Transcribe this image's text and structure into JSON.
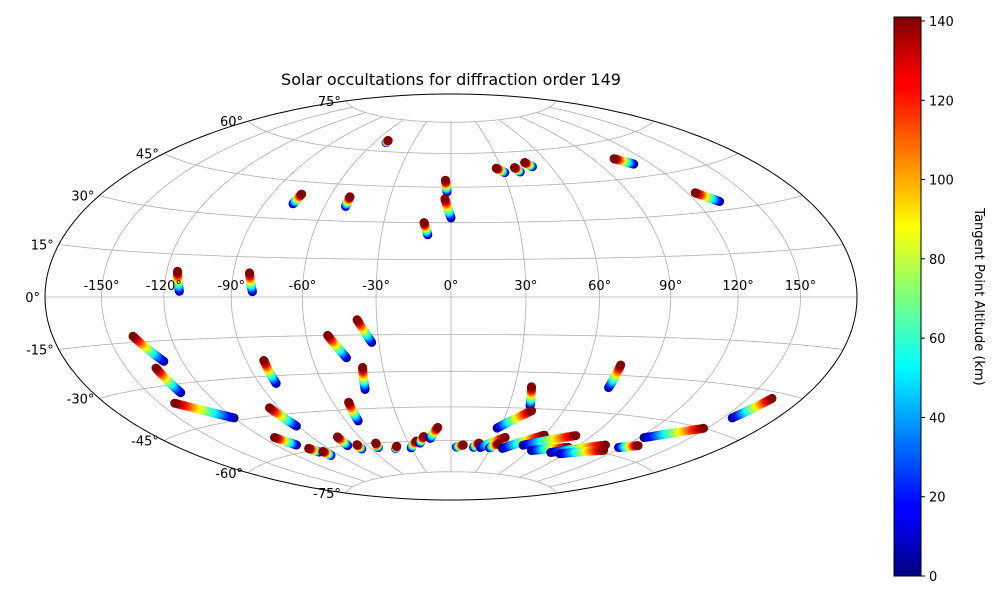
{
  "chart_data": {
    "type": "scatter",
    "projection": "hammer",
    "title": "Solar occultations for diffraction order 149",
    "xlabel": "",
    "ylabel": "",
    "grid": true,
    "lon_ticks": [
      -150,
      -120,
      -90,
      -60,
      -30,
      0,
      30,
      60,
      90,
      120,
      150
    ],
    "lon_tick_labels": [
      "-150°",
      "-120°",
      "-90°",
      "-60°",
      "-30°",
      "0°",
      "30°",
      "60°",
      "90°",
      "120°",
      "150°"
    ],
    "lat_ticks": [
      -75,
      -60,
      -45,
      -30,
      -15,
      0,
      15,
      30,
      45,
      60,
      75
    ],
    "lat_tick_labels": [
      "-75°",
      "-60°",
      "-45°",
      "-30°",
      "-15°",
      "0°",
      "15°",
      "30°",
      "45°",
      "60°",
      "75°"
    ],
    "colorbar": {
      "label": "Tangent Point Altitude (km)",
      "colormap": "jet",
      "min": 0,
      "max": 141,
      "ticks": [
        0,
        20,
        40,
        60,
        80,
        100,
        120,
        140
      ],
      "tick_labels": [
        "0",
        "20",
        "40",
        "60",
        "80",
        "100",
        "120",
        "140"
      ]
    },
    "units": {
      "lon": "degrees",
      "lat": "degrees",
      "altitude": "km"
    },
    "tracks": [
      {
        "top": [
          -51,
          65
        ],
        "bottom": [
          -51,
          64
        ]
      },
      {
        "top": [
          -75,
          40
        ],
        "bottom": [
          -76,
          36
        ]
      },
      {
        "top": [
          -50,
          40
        ],
        "bottom": [
          -50,
          36
        ]
      },
      {
        "top": [
          -3,
          48
        ],
        "bottom": [
          -2,
          43
        ]
      },
      {
        "top": [
          -3,
          40
        ],
        "bottom": [
          0,
          32
        ]
      },
      {
        "top": [
          -12,
          30
        ],
        "bottom": [
          -10,
          25
        ]
      },
      {
        "top": [
          27,
          53
        ],
        "bottom": [
          31,
          51
        ]
      },
      {
        "top": [
          38,
          53
        ],
        "bottom": [
          40,
          51
        ]
      },
      {
        "top": [
          46,
          55
        ],
        "bottom": [
          49,
          53
        ]
      },
      {
        "top": [
          103,
          53
        ],
        "bottom": [
          110,
          50
        ]
      },
      {
        "top": [
          124,
          37
        ],
        "bottom": [
          132,
          33
        ]
      },
      {
        "top": [
          -115,
          9
        ],
        "bottom": [
          -113,
          2
        ]
      },
      {
        "top": [
          -83,
          9
        ],
        "bottom": [
          -81,
          2
        ]
      },
      {
        "top": [
          -138,
          -13
        ],
        "bottom": [
          -129,
          -22
        ]
      },
      {
        "top": [
          -135,
          -24
        ],
        "bottom": [
          -133,
          -33
        ]
      },
      {
        "top": [
          -82,
          -24
        ],
        "bottom": [
          -82,
          -33
        ]
      },
      {
        "top": [
          -51,
          -15
        ],
        "bottom": [
          -45,
          -24
        ]
      },
      {
        "top": [
          -38,
          -9
        ],
        "bottom": [
          -33,
          -18
        ]
      },
      {
        "top": [
          -39,
          -28
        ],
        "bottom": [
          -41,
          -37
        ]
      },
      {
        "top": [
          -142,
          -36
        ],
        "bottom": [
          -120,
          -44
        ]
      },
      {
        "top": [
          -95,
          -42
        ],
        "bottom": [
          -91,
          -50
        ]
      },
      {
        "top": [
          -52,
          -42
        ],
        "bottom": [
          -53,
          -50
        ]
      },
      {
        "top": [
          38,
          -36
        ],
        "bottom": [
          41,
          -44
        ]
      },
      {
        "top": [
          43,
          -46
        ],
        "bottom": [
          28,
          -54
        ]
      },
      {
        "top": [
          75,
          -26
        ],
        "bottom": [
          75,
          -35
        ]
      },
      {
        "top": [
          163,
          -32
        ],
        "bottom": [
          155,
          -40
        ]
      },
      {
        "top": [
          148,
          -45
        ],
        "bottom": [
          123,
          -52
        ]
      },
      {
        "top": [
          -113,
          -53
        ],
        "bottom": [
          -107,
          -57
        ]
      },
      {
        "top": [
          -103,
          -59
        ],
        "bottom": [
          -100,
          -61
        ]
      },
      {
        "top": [
          -97,
          -61
        ],
        "bottom": [
          -96,
          -63
        ]
      },
      {
        "top": [
          -74,
          -56
        ],
        "bottom": [
          -74,
          -60
        ]
      },
      {
        "top": [
          -67,
          -60
        ],
        "bottom": [
          -67,
          -62
        ]
      },
      {
        "top": [
          -53,
          -60
        ],
        "bottom": [
          -54,
          -62
        ]
      },
      {
        "top": [
          -40,
          -62
        ],
        "bottom": [
          -42,
          -63
        ]
      },
      {
        "top": [
          -24,
          -60
        ],
        "bottom": [
          -30,
          -63
        ]
      },
      {
        "top": [
          -18,
          -58
        ],
        "bottom": [
          -22,
          -61
        ]
      },
      {
        "top": [
          -8,
          -54
        ],
        "bottom": [
          -14,
          -59
        ]
      },
      {
        "top": [
          9,
          -62
        ],
        "bottom": [
          4,
          -63
        ]
      },
      {
        "top": [
          20,
          -61
        ],
        "bottom": [
          17,
          -63
        ]
      },
      {
        "top": [
          36,
          -58
        ],
        "bottom": [
          22,
          -63
        ]
      },
      {
        "top": [
          34,
          -61
        ],
        "bottom": [
          29,
          -63
        ]
      },
      {
        "top": [
          60,
          -56
        ],
        "bottom": [
          39,
          -63
        ]
      },
      {
        "top": [
          80,
          -55
        ],
        "bottom": [
          52,
          -61
        ]
      },
      {
        "top": [
          85,
          -60
        ],
        "bottom": [
          62,
          -63
        ]
      },
      {
        "top": [
          107,
          -57
        ],
        "bottom": [
          78,
          -63
        ]
      },
      {
        "top": [
          112,
          -59
        ],
        "bottom": [
          86,
          -63
        ]
      },
      {
        "top": [
          128,
          -55
        ],
        "bottom": [
          118,
          -57
        ]
      }
    ]
  }
}
